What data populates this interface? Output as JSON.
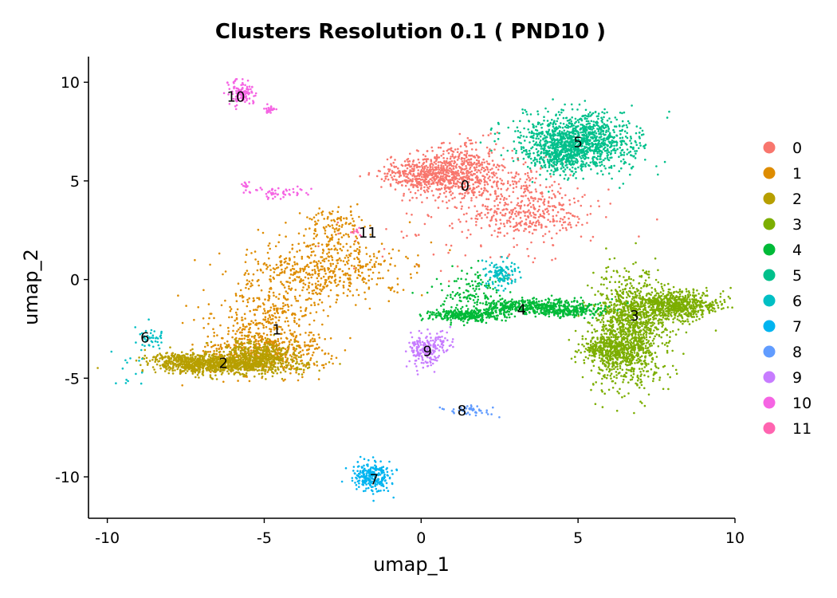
{
  "chart_data": {
    "type": "scatter",
    "title": "Clusters Resolution 0.1 ( PND10 )",
    "xlabel": "umap_1",
    "ylabel": "umap_2",
    "xlim": [
      -10.6,
      10
    ],
    "ylim": [
      -12.1,
      11.3
    ],
    "xticks": [
      -10,
      -5,
      0,
      5,
      10
    ],
    "xtick_labels": [
      "-10",
      "-5",
      "0",
      "5",
      "10"
    ],
    "yticks": [
      -10,
      -5,
      0,
      5,
      10
    ],
    "ytick_labels": [
      "-10",
      "-5",
      "0",
      "5",
      "10"
    ],
    "grid": false,
    "legend_position": "right",
    "series": [
      {
        "name": "0",
        "color": "#F8766D",
        "label_pos": [
          1.4,
          4.8
        ],
        "blobs": [
          [
            0.2,
            5.3,
            0.7,
            0.45,
            450
          ],
          [
            1.3,
            5.6,
            0.6,
            0.7,
            350
          ],
          [
            2.7,
            4.5,
            1.1,
            0.9,
            280
          ],
          [
            3.6,
            3.2,
            0.8,
            0.6,
            220
          ],
          [
            2.0,
            2.2,
            2.2,
            1.2,
            80
          ]
        ]
      },
      {
        "name": "1",
        "color": "#DE8C00",
        "label_pos": [
          -4.6,
          -2.5
        ],
        "blobs": [
          [
            -5.0,
            -3.6,
            1.0,
            0.6,
            500
          ],
          [
            -4.7,
            -1.8,
            0.6,
            0.8,
            200
          ],
          [
            -3.5,
            0.4,
            1.0,
            0.8,
            300
          ],
          [
            -2.4,
            0.6,
            1.2,
            0.9,
            200
          ],
          [
            -2.8,
            2.6,
            0.45,
            0.5,
            120
          ],
          [
            -5.8,
            -1.5,
            1.2,
            1.0,
            60
          ]
        ]
      },
      {
        "name": "2",
        "color": "#B79F00",
        "label_pos": [
          -6.3,
          -4.2
        ],
        "blobs": [
          [
            -6.3,
            -4.3,
            1.1,
            0.25,
            900
          ],
          [
            -7.5,
            -4.1,
            0.5,
            0.25,
            200
          ],
          [
            -5.2,
            -3.8,
            0.6,
            0.35,
            300
          ]
        ]
      },
      {
        "name": "3",
        "color": "#7CAE00",
        "label_pos": [
          6.8,
          -1.8
        ],
        "blobs": [
          [
            6.6,
            -2.6,
            0.6,
            1.4,
            1200
          ],
          [
            8.1,
            -1.3,
            0.7,
            0.35,
            700
          ],
          [
            6.0,
            -3.6,
            0.5,
            0.3,
            300
          ]
        ]
      },
      {
        "name": "4",
        "color": "#00BA38",
        "label_pos": [
          3.2,
          -1.5
        ],
        "blobs": [
          [
            1.4,
            -1.8,
            0.6,
            0.15,
            300
          ],
          [
            3.6,
            -1.4,
            1.0,
            0.2,
            500
          ],
          [
            1.6,
            -0.6,
            0.5,
            0.5,
            120
          ],
          [
            4.8,
            -1.6,
            0.5,
            0.15,
            120
          ]
        ]
      },
      {
        "name": "5",
        "color": "#00C08B",
        "label_pos": [
          5.0,
          7.0
        ],
        "blobs": [
          [
            5.0,
            7.0,
            0.9,
            0.7,
            1200
          ],
          [
            4.4,
            6.3,
            0.5,
            0.5,
            200
          ]
        ]
      },
      {
        "name": "6",
        "color": "#00BFC4",
        "label_pos": [
          -8.8,
          -2.9
        ],
        "blobs": [
          [
            -8.6,
            -3.0,
            0.2,
            0.3,
            40
          ],
          [
            2.6,
            0.3,
            0.3,
            0.35,
            120
          ],
          [
            -9.3,
            -4.6,
            0.4,
            0.4,
            15
          ]
        ]
      },
      {
        "name": "7",
        "color": "#00B4F0",
        "label_pos": [
          -1.5,
          -10.1
        ],
        "blobs": [
          [
            -1.6,
            -10.0,
            0.3,
            0.35,
            250
          ]
        ]
      },
      {
        "name": "8",
        "color": "#619CFF",
        "label_pos": [
          1.3,
          -6.6
        ],
        "blobs": [
          [
            1.4,
            -6.6,
            0.25,
            0.1,
            40
          ],
          [
            2.0,
            -6.8,
            0.2,
            0.08,
            8
          ]
        ]
      },
      {
        "name": "9",
        "color": "#C77CFF",
        "label_pos": [
          0.2,
          -3.6
        ],
        "blobs": [
          [
            0.1,
            -3.6,
            0.25,
            0.4,
            180
          ],
          [
            0.6,
            -3.2,
            0.2,
            0.3,
            40
          ]
        ]
      },
      {
        "name": "10",
        "color": "#F564E3",
        "label_pos": [
          -5.9,
          9.3
        ],
        "blobs": [
          [
            -5.7,
            9.5,
            0.2,
            0.35,
            120
          ],
          [
            -4.8,
            8.6,
            0.1,
            0.12,
            25
          ],
          [
            -4.5,
            4.4,
            0.4,
            0.15,
            50
          ],
          [
            -5.6,
            4.7,
            0.05,
            0.15,
            15
          ]
        ]
      },
      {
        "name": "11",
        "color": "#FF64B0",
        "label_pos": [
          -1.7,
          2.4
        ],
        "blobs": [
          [
            -2.0,
            2.4,
            0.15,
            0.12,
            10
          ]
        ]
      }
    ]
  }
}
